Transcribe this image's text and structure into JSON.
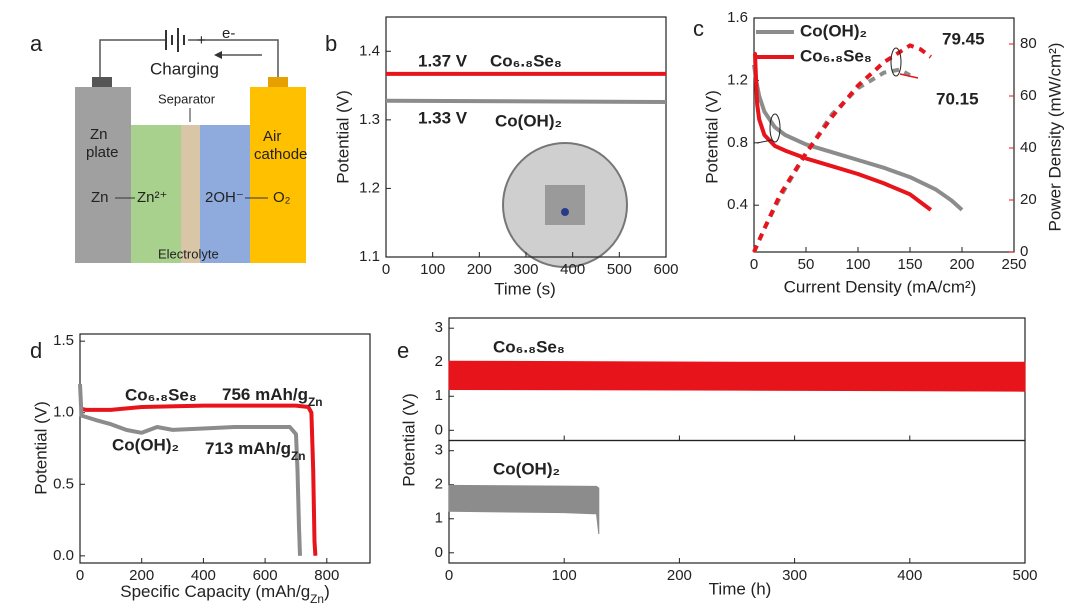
{
  "diagram": {
    "label": "a",
    "plus": "+",
    "electron": "e-",
    "charging": "Charging",
    "separator": "Separator",
    "zn_plate": [
      "Zn",
      "plate"
    ],
    "air_cathode": [
      "Air",
      "cathode"
    ],
    "zn": "Zn",
    "zn_ion": "Zn²⁺",
    "hydroxide": "2OH⁻",
    "oxygen": "O₂",
    "electrolyte": "Electrolyte"
  },
  "chart_data": [
    {
      "type": "line",
      "label": "b",
      "xlabel": "Time (s)",
      "ylabel": "Potential (V)",
      "xlim": [
        0,
        600
      ],
      "xticks": [
        0,
        100,
        200,
        300,
        400,
        500,
        600
      ],
      "ylim": [
        1.1,
        1.45
      ],
      "yticks": [
        1.1,
        1.2,
        1.3,
        1.4
      ],
      "series": [
        {
          "name": "Co₆.₈Se₈",
          "color": "#e8141b",
          "x": [
            0,
            600
          ],
          "values": [
            1.367,
            1.367
          ],
          "annotation": "1.37 V"
        },
        {
          "name": "Co(OH)₂",
          "color": "#8c8c8c",
          "x": [
            0,
            600
          ],
          "values": [
            1.328,
            1.326
          ],
          "annotation": "1.33 V"
        }
      ]
    },
    {
      "type": "line",
      "label": "c",
      "xlabel": "Current Density (mA/cm²)",
      "ylabel": "Potential (V)",
      "y2label": "Power Density (mW/cm²)",
      "xlim": [
        0,
        250
      ],
      "xticks": [
        0,
        50,
        100,
        150,
        200,
        250
      ],
      "ylim": [
        0.1,
        1.6
      ],
      "yticks": [
        0.4,
        0.8,
        1.2,
        1.6
      ],
      "y2lim": [
        0,
        90
      ],
      "y2ticks": [
        0,
        20,
        40,
        60,
        80
      ],
      "y2color": "#e8141b",
      "series": [
        {
          "name": "Co(OH)₂",
          "color": "#8c8c8c",
          "x": [
            0,
            2,
            5,
            10,
            20,
            30,
            50,
            75,
            100,
            125,
            150,
            175,
            190,
            200
          ],
          "values": [
            1.3,
            1.2,
            1.1,
            1.0,
            0.9,
            0.85,
            0.79,
            0.74,
            0.69,
            0.64,
            0.58,
            0.5,
            0.43,
            0.37
          ]
        },
        {
          "name": "Co₆.₈Se₈",
          "color": "#e8141b",
          "x": [
            0,
            1,
            3,
            5,
            10,
            20,
            30,
            50,
            75,
            100,
            125,
            150,
            160,
            170
          ],
          "values": [
            1.37,
            1.37,
            1.05,
            0.95,
            0.85,
            0.78,
            0.75,
            0.7,
            0.65,
            0.6,
            0.54,
            0.47,
            0.42,
            0.37
          ]
        },
        {
          "color": "#8c8c8c",
          "axis": "y2",
          "dash": true,
          "x": [
            0,
            10,
            25,
            50,
            75,
            100,
            125,
            140,
            150
          ],
          "values": [
            0,
            9,
            21,
            38,
            53,
            63,
            69,
            70.15,
            68
          ],
          "annotation": "70.15"
        },
        {
          "color": "#e8141b",
          "axis": "y2",
          "dash": true,
          "x": [
            0,
            10,
            25,
            50,
            75,
            100,
            125,
            150,
            160,
            170
          ],
          "values": [
            0,
            9,
            22,
            38,
            52,
            64,
            73,
            79.45,
            78,
            75
          ],
          "annotation": "79.45"
        }
      ]
    },
    {
      "type": "line",
      "label": "d",
      "xlabel": [
        "Specific Capacity (mAh/g",
        "Zn",
        ")"
      ],
      "ylabel": "Potential (V)",
      "xlim": [
        0,
        940
      ],
      "xticks": [
        0,
        200,
        400,
        600,
        800
      ],
      "ylim": [
        -0.05,
        1.55
      ],
      "yticks": [
        {
          "value": 0,
          "label": "0.0"
        },
        0.5,
        {
          "value": 1,
          "label": "1.0"
        },
        1.5
      ],
      "series": [
        {
          "name": "Co₆.₈Se₈",
          "color": "#e8141b",
          "x": [
            0,
            20,
            100,
            200,
            400,
            600,
            700,
            740,
            750,
            756,
            760,
            763
          ],
          "values": [
            1.03,
            1.02,
            1.02,
            1.04,
            1.05,
            1.05,
            1.05,
            1.04,
            1.0,
            0.6,
            0.1,
            0
          ],
          "annotation": [
            "756 mAh/g",
            "Zn"
          ]
        },
        {
          "name": "Co(OH)₂",
          "color": "#8c8c8c",
          "x": [
            0,
            5,
            50,
            100,
            150,
            200,
            250,
            300,
            400,
            500,
            600,
            680,
            700,
            705,
            710,
            713
          ],
          "values": [
            1.2,
            0.98,
            0.95,
            0.92,
            0.88,
            0.86,
            0.9,
            0.88,
            0.89,
            0.9,
            0.9,
            0.9,
            0.85,
            0.6,
            0.2,
            0
          ],
          "annotation": [
            "713 mAh/g",
            "Zn"
          ]
        }
      ]
    },
    {
      "type": "band",
      "label": "e",
      "xlabel": "Time (h)",
      "ylabel": "Potential (V)",
      "xlim": [
        0,
        500
      ],
      "xticks": [
        0,
        100,
        200,
        300,
        400,
        500
      ],
      "subplots": [
        {
          "ylim": [
            -0.3,
            3.3
          ],
          "yticks": [
            0,
            1,
            2,
            3
          ],
          "series": [
            {
              "name": "Co₆.₈Se₈",
              "color": "#e8141b",
              "x": [
                0,
                250,
                500
              ],
              "high": [
                2.03,
                2.0,
                2.0
              ],
              "low": [
                1.2,
                1.18,
                1.15
              ]
            }
          ]
        },
        {
          "ylim": [
            -0.3,
            3.3
          ],
          "yticks": [
            0,
            1,
            2,
            3
          ],
          "series": [
            {
              "name": "Co(OH)₂",
              "color": "#8c8c8c",
              "x": [
                0,
                100,
                125,
                128,
                130
              ],
              "high": [
                1.98,
                1.96,
                1.95,
                1.95,
                1.9
              ],
              "low": [
                1.22,
                1.18,
                1.15,
                1.15,
                0.55
              ]
            }
          ]
        }
      ]
    }
  ]
}
